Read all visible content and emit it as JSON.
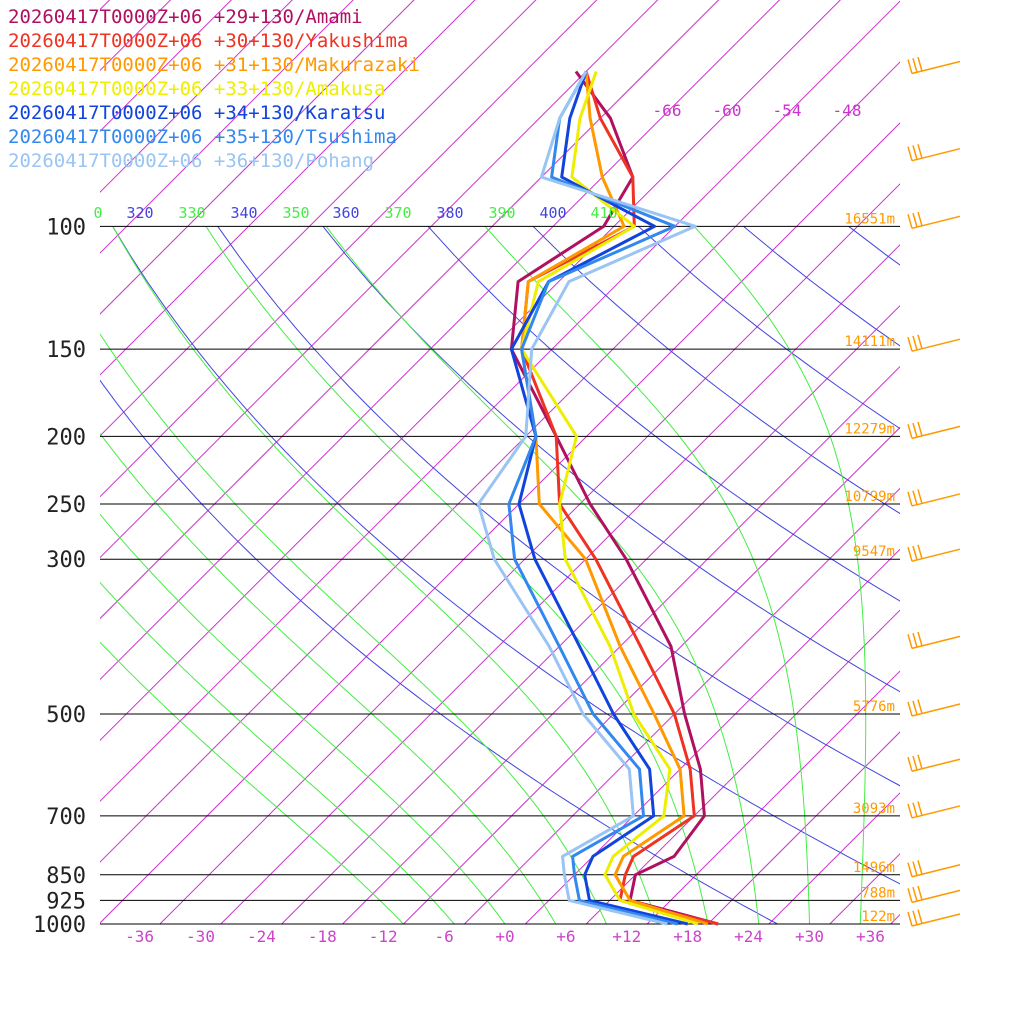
{
  "chart_data": {
    "type": "line",
    "diagram": "skew-T log-p sounding",
    "x_axis": {
      "label": "",
      "ticks": [
        "-36",
        "-30",
        "-24",
        "-18",
        "-12",
        "-6",
        "+0",
        "+6",
        "+12",
        "+18",
        "+24",
        "+30",
        "+36"
      ],
      "tick_color": "#cc44cc"
    },
    "y_axis": {
      "label": "",
      "scale": "log",
      "pressure_ticks": [
        100,
        150,
        200,
        250,
        300,
        500,
        700,
        850,
        925,
        1000
      ],
      "tick_labels": [
        "100",
        "150",
        "200",
        "250",
        "300",
        "500",
        "700",
        "850",
        "925",
        "1000"
      ]
    },
    "heights": [
      {
        "p": 100,
        "label": "16551m"
      },
      {
        "p": 150,
        "label": "14111m"
      },
      {
        "p": 200,
        "label": "12279m"
      },
      {
        "p": 250,
        "label": "10799m"
      },
      {
        "p": 300,
        "label": "9547m"
      },
      {
        "p": 500,
        "label": "5776m"
      },
      {
        "p": 700,
        "label": "3093m"
      },
      {
        "p": 850,
        "label": "1496m"
      },
      {
        "p": 925,
        "label": "788m"
      },
      {
        "p": 1000,
        "label": "122m"
      }
    ],
    "theta_labels": [
      "0",
      "320",
      "330",
      "340",
      "350",
      "360",
      "370",
      "380",
      "390",
      "400",
      "410"
    ],
    "isotherm_labels": [
      "-66",
      "-60",
      "-54",
      "-48"
    ],
    "colors": {
      "isobar": "#000000",
      "isotherm": "#cc33cc",
      "dry_adiabat": "#4444dd",
      "moist_adiabat": "#44ee44",
      "height_label": "#ff9900",
      "wind_barb": "#ff9900"
    },
    "grid": true,
    "legend_position": "top-left",
    "series": [
      {
        "name": "20260417T0000Z+06 +29+130/Amami",
        "color": "#b01060",
        "values": [
          [
            60,
            -77
          ],
          [
            70,
            -69
          ],
          [
            85,
            -61
          ],
          [
            100,
            -59
          ],
          [
            120,
            -62
          ],
          [
            150,
            -56
          ],
          [
            200,
            -43
          ],
          [
            250,
            -33
          ],
          [
            300,
            -24
          ],
          [
            400,
            -11
          ],
          [
            500,
            -3
          ],
          [
            600,
            4
          ],
          [
            700,
            9
          ],
          [
            800,
            10
          ],
          [
            850,
            8
          ],
          [
            925,
            10
          ],
          [
            1000,
            21
          ]
        ]
      },
      {
        "name": "20260417T0000Z+06 +30+130/Yakushima",
        "color": "#ee3322",
        "values": [
          [
            60,
            -76
          ],
          [
            70,
            -70
          ],
          [
            85,
            -61
          ],
          [
            100,
            -56
          ],
          [
            120,
            -61
          ],
          [
            150,
            -55
          ],
          [
            200,
            -43
          ],
          [
            250,
            -36
          ],
          [
            300,
            -27
          ],
          [
            400,
            -14
          ],
          [
            500,
            -4
          ],
          [
            600,
            3
          ],
          [
            700,
            8
          ],
          [
            800,
            6
          ],
          [
            850,
            7
          ],
          [
            925,
            9
          ],
          [
            1000,
            21
          ]
        ]
      },
      {
        "name": "20260417T0000Z+06 +31+130/Makurazaki",
        "color": "#ff9900",
        "values": [
          [
            60,
            -76
          ],
          [
            70,
            -71
          ],
          [
            85,
            -64
          ],
          [
            100,
            -57
          ],
          [
            120,
            -61
          ],
          [
            150,
            -55
          ],
          [
            200,
            -45
          ],
          [
            250,
            -38
          ],
          [
            300,
            -28
          ],
          [
            400,
            -16
          ],
          [
            500,
            -6
          ],
          [
            600,
            2
          ],
          [
            700,
            7
          ],
          [
            800,
            5
          ],
          [
            850,
            6
          ],
          [
            925,
            10
          ],
          [
            1000,
            20
          ]
        ]
      },
      {
        "name": "20260417T0000Z+06 +33+130/Amakusa",
        "color": "#eeee00",
        "values": [
          [
            60,
            -75
          ],
          [
            70,
            -72
          ],
          [
            85,
            -67
          ],
          [
            100,
            -56
          ],
          [
            120,
            -60
          ],
          [
            150,
            -55
          ],
          [
            200,
            -41
          ],
          [
            250,
            -36
          ],
          [
            300,
            -30
          ],
          [
            400,
            -17
          ],
          [
            500,
            -8
          ],
          [
            600,
            1
          ],
          [
            700,
            5
          ],
          [
            800,
            4
          ],
          [
            850,
            5
          ],
          [
            925,
            9
          ],
          [
            1000,
            19
          ]
        ]
      },
      {
        "name": "20260417T0000Z+06 +34+130/Karatsu",
        "color": "#1144dd",
        "values": [
          [
            60,
            -76
          ],
          [
            70,
            -73
          ],
          [
            85,
            -68
          ],
          [
            100,
            -54
          ],
          [
            120,
            -59
          ],
          [
            150,
            -56
          ],
          [
            200,
            -45
          ],
          [
            250,
            -40
          ],
          [
            300,
            -33
          ],
          [
            400,
            -20
          ],
          [
            500,
            -10
          ],
          [
            600,
            -1
          ],
          [
            700,
            4
          ],
          [
            800,
            2
          ],
          [
            850,
            3
          ],
          [
            925,
            6
          ],
          [
            1000,
            18
          ]
        ]
      },
      {
        "name": "20260417T0000Z+06 +35+130/Tsushima",
        "color": "#3388ee",
        "values": [
          [
            60,
            -76
          ],
          [
            70,
            -74
          ],
          [
            85,
            -69
          ],
          [
            100,
            -52
          ],
          [
            120,
            -59
          ],
          [
            150,
            -55
          ],
          [
            200,
            -45
          ],
          [
            250,
            -41
          ],
          [
            300,
            -35
          ],
          [
            400,
            -22
          ],
          [
            500,
            -12
          ],
          [
            600,
            -2
          ],
          [
            700,
            3
          ],
          [
            800,
            0
          ],
          [
            850,
            2
          ],
          [
            925,
            5
          ],
          [
            1000,
            17
          ]
        ]
      },
      {
        "name": "20260417T0000Z+06 +36+130/Pohang",
        "color": "#99c4f4",
        "values": [
          [
            60,
            -76
          ],
          [
            70,
            -74
          ],
          [
            85,
            -70
          ],
          [
            100,
            -50
          ],
          [
            120,
            -57
          ],
          [
            150,
            -54
          ],
          [
            200,
            -46
          ],
          [
            250,
            -44
          ],
          [
            300,
            -37
          ],
          [
            400,
            -23
          ],
          [
            500,
            -13
          ],
          [
            600,
            -3
          ],
          [
            700,
            2
          ],
          [
            800,
            -1
          ],
          [
            850,
            1
          ],
          [
            925,
            4
          ],
          [
            1000,
            16
          ]
        ]
      }
    ],
    "wind_barbs_hpa": [
      60,
      80,
      100,
      150,
      200,
      250,
      300,
      400,
      500,
      600,
      700,
      850,
      925,
      1000
    ]
  }
}
